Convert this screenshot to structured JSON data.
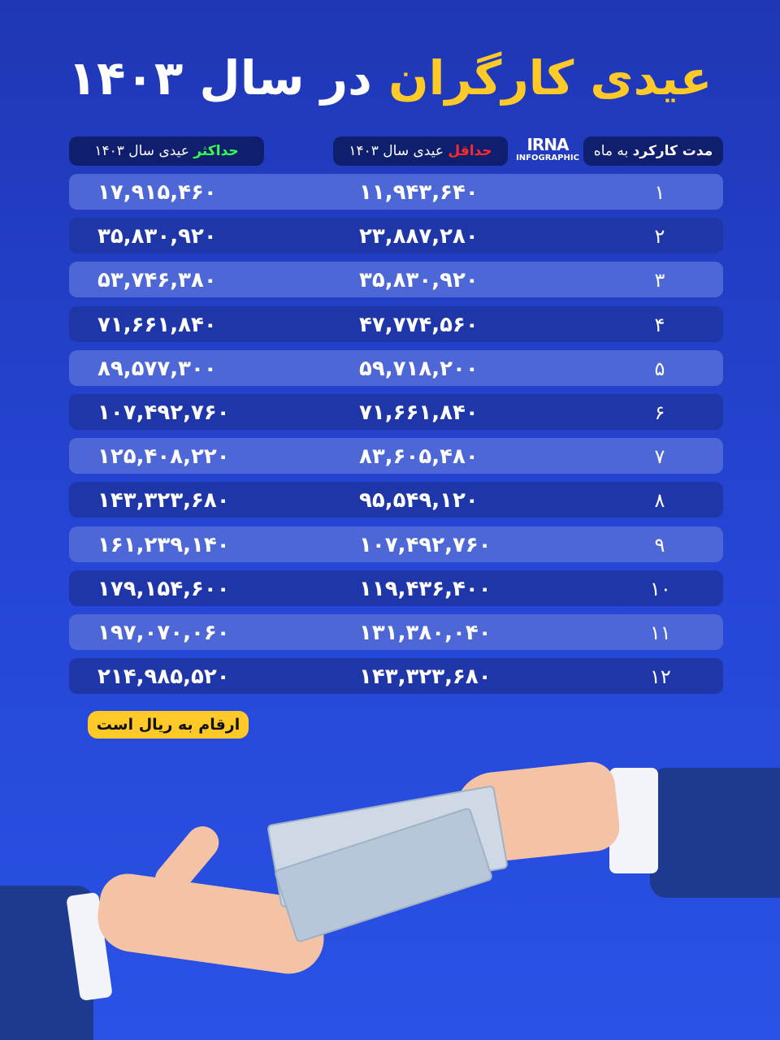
{
  "title": {
    "highlight": "عیدی کارگران",
    "rest": "در سال ۱۴۰۳"
  },
  "headers": {
    "duration": {
      "bold": "مدت کارکرد",
      "rest": "به ماه"
    },
    "min": {
      "bold": "حداقل",
      "rest": "عیدی سال ۱۴۰۳"
    },
    "max": {
      "bold": "حداکثر",
      "rest": "عیدی سال ۱۴۰۳"
    }
  },
  "logo": {
    "name": "IRNA",
    "sub": "INFOGRAPHIC"
  },
  "rows": [
    {
      "months": "۱",
      "min": "۱۱,۹۴۳,۶۴۰",
      "max": "۱۷,۹۱۵,۴۶۰"
    },
    {
      "months": "۲",
      "min": "۲۳,۸۸۷,۲۸۰",
      "max": "۳۵,۸۳۰,۹۲۰"
    },
    {
      "months": "۳",
      "min": "۳۵,۸۳۰,۹۲۰",
      "max": "۵۳,۷۴۶,۳۸۰"
    },
    {
      "months": "۴",
      "min": "۴۷,۷۷۴,۵۶۰",
      "max": "۷۱,۶۶۱,۸۴۰"
    },
    {
      "months": "۵",
      "min": "۵۹,۷۱۸,۲۰۰",
      "max": "۸۹,۵۷۷,۳۰۰"
    },
    {
      "months": "۶",
      "min": "۷۱,۶۶۱,۸۴۰",
      "max": "۱۰۷,۴۹۲,۷۶۰"
    },
    {
      "months": "۷",
      "min": "۸۳,۶۰۵,۴۸۰",
      "max": "۱۲۵,۴۰۸,۲۲۰"
    },
    {
      "months": "۸",
      "min": "۹۵,۵۴۹,۱۲۰",
      "max": "۱۴۳,۳۲۳,۶۸۰"
    },
    {
      "months": "۹",
      "min": "۱۰۷,۴۹۲,۷۶۰",
      "max": "۱۶۱,۲۳۹,۱۴۰"
    },
    {
      "months": "۱۰",
      "min": "۱۱۹,۴۳۶,۴۰۰",
      "max": "۱۷۹,۱۵۴,۶۰۰"
    },
    {
      "months": "۱۱",
      "min": "۱۳۱,۳۸۰,۰۴۰",
      "max": "۱۹۷,۰۷۰,۰۶۰"
    },
    {
      "months": "۱۲",
      "min": "۱۴۳,۳۲۳,۶۸۰",
      "max": "۲۱۴,۹۸۵,۵۲۰"
    }
  ],
  "note": "ارقام به ریال است",
  "colors": {
    "accent": "#ffc928",
    "min_label": "#ff2b2b",
    "max_label": "#35ff4a",
    "row_light": "#4d67d6",
    "row_dark": "#1f36a8"
  }
}
